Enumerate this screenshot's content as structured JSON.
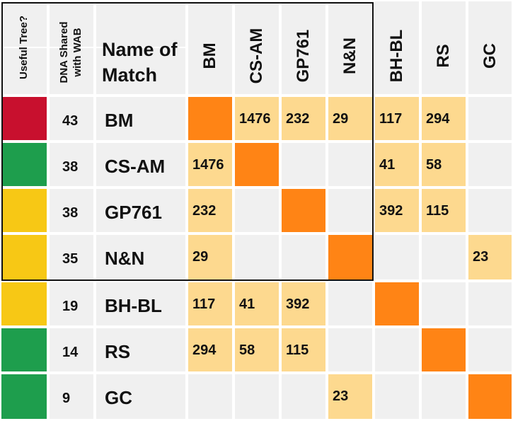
{
  "colors": {
    "status": {
      "red": "#c8102e",
      "green": "#1e9e4d",
      "yellow": "#f7c815"
    },
    "diagonal": "#ff8415",
    "value": "#fdd98f",
    "empty": "#f0f0f0"
  },
  "chart_data": {
    "type": "heatmap",
    "headers": {
      "useful_tree": "Useful Tree?",
      "dna_shared": [
        "DNA Shared",
        "with WAB"
      ],
      "name": [
        "Name of",
        "Match"
      ]
    },
    "columns": [
      "BM",
      "CS-AM",
      "GP761",
      "N&N",
      "BH-BL",
      "RS",
      "GC"
    ],
    "rows": [
      {
        "name": "BM",
        "dna": "43",
        "status": "red"
      },
      {
        "name": "CS-AM",
        "dna": "38",
        "status": "green"
      },
      {
        "name": "GP761",
        "dna": "38",
        "status": "yellow"
      },
      {
        "name": "N&N",
        "dna": "35",
        "status": "yellow"
      },
      {
        "name": "BH-BL",
        "dna": "19",
        "status": "yellow"
      },
      {
        "name": "RS",
        "dna": "14",
        "status": "green"
      },
      {
        "name": "GC",
        "dna": "9",
        "status": "green"
      }
    ],
    "matrix": [
      [
        null,
        1476,
        232,
        29,
        117,
        294,
        null
      ],
      [
        1476,
        null,
        null,
        null,
        41,
        58,
        null
      ],
      [
        232,
        null,
        null,
        null,
        392,
        115,
        null
      ],
      [
        29,
        null,
        null,
        null,
        null,
        null,
        23
      ],
      [
        117,
        41,
        392,
        null,
        null,
        null,
        null
      ],
      [
        294,
        58,
        115,
        null,
        null,
        null,
        null
      ],
      [
        null,
        null,
        null,
        23,
        null,
        null,
        null
      ]
    ],
    "highlighted_cluster": [
      "BM",
      "CS-AM",
      "GP761",
      "N&N"
    ]
  }
}
